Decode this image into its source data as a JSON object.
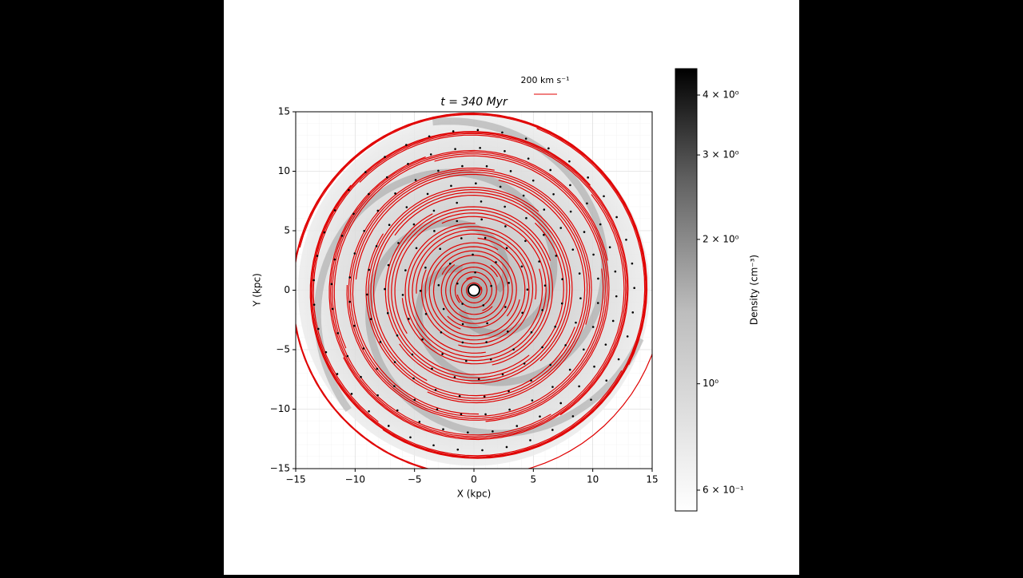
{
  "chart_data": {
    "type": "streamplot",
    "title": "t = 340 Myr",
    "xlabel": "X (kpc)",
    "ylabel": "Y (kpc)",
    "xlim": [
      -15,
      15
    ],
    "ylim": [
      -15,
      15
    ],
    "xticks": [
      {
        "value": -15,
        "label": "−15"
      },
      {
        "value": -10,
        "label": "−10"
      },
      {
        "value": -5,
        "label": "−5"
      },
      0,
      5,
      10,
      15
    ],
    "yticks": [
      {
        "value": -15,
        "label": "−15"
      },
      {
        "value": -10,
        "label": "−10"
      },
      {
        "value": -5,
        "label": "−5"
      },
      0,
      5,
      10,
      15
    ],
    "grid": true,
    "streamline_color": "#e00000",
    "reference_arrow_label": "200 km s⁻¹",
    "colorbar": {
      "label": "Density (cm⁻³)",
      "log_scale": true,
      "lim": [
        0.543,
        4.54
      ],
      "ticks": [
        {
          "value": 0.6,
          "label": "6 × 10⁻¹"
        },
        {
          "value": 1,
          "label": "10⁰"
        },
        {
          "value": 2,
          "label": "2 × 10⁰"
        },
        {
          "value": 3,
          "label": "3 × 10⁰"
        },
        {
          "value": 4,
          "label": "4 × 10⁰"
        }
      ]
    }
  }
}
